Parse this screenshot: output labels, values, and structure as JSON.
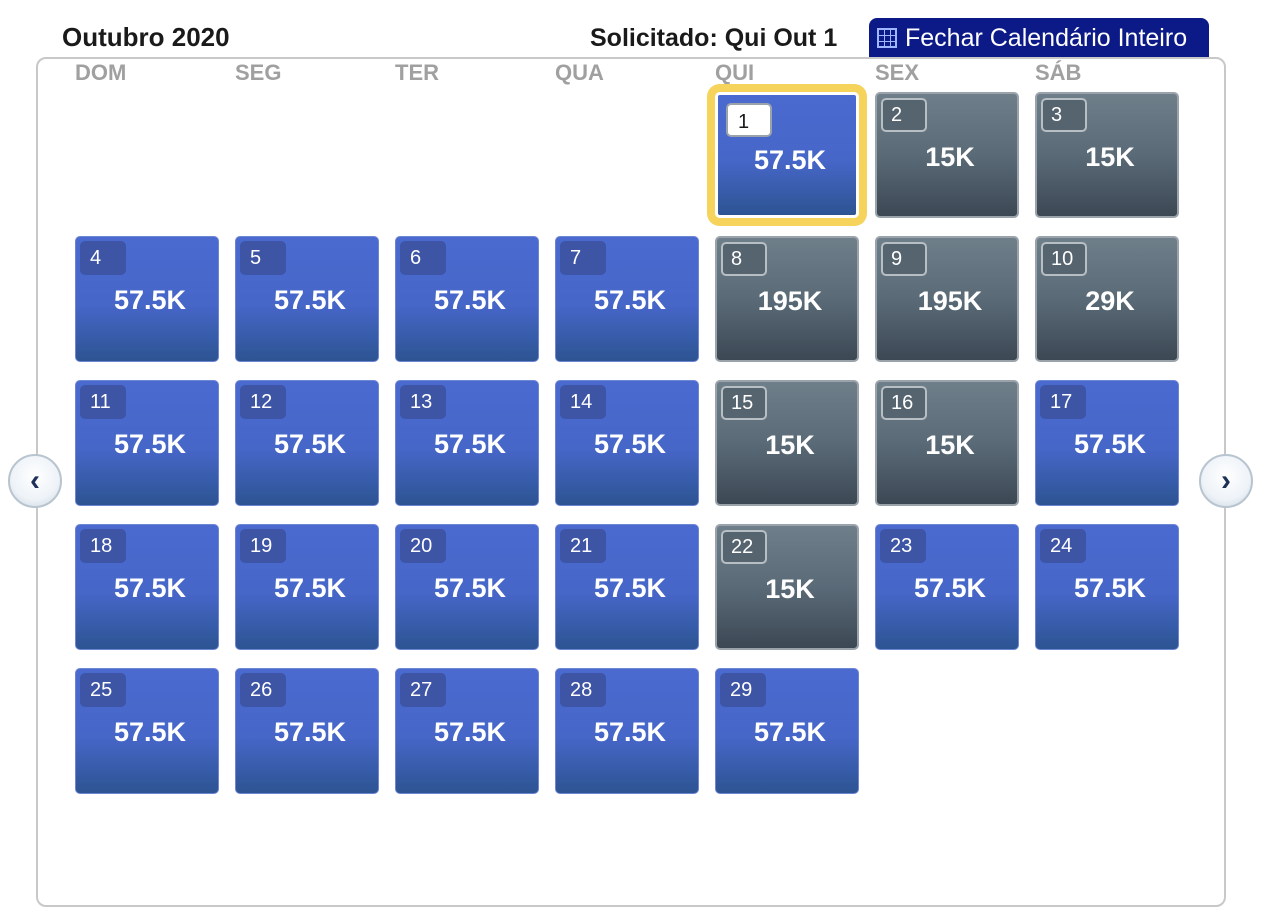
{
  "header": {
    "month_title": "Outubro 2020",
    "requested": "Solicitado: Qui Out 1",
    "close_button": "Fechar Calendário Inteiro"
  },
  "weekdays": [
    "DOM",
    "SEG",
    "TER",
    "QUA",
    "QUI",
    "SEX",
    "SÁB"
  ],
  "nav": {
    "prev_icon": "chevron-left-icon",
    "next_icon": "chevron-right-icon",
    "prev": "‹",
    "next": "›"
  },
  "days": [
    {
      "day": "1",
      "price": "57.5K",
      "style": "blue",
      "selected": true
    },
    {
      "day": "2",
      "price": "15K",
      "style": "gray"
    },
    {
      "day": "3",
      "price": "15K",
      "style": "gray"
    },
    {
      "day": "4",
      "price": "57.5K",
      "style": "blue"
    },
    {
      "day": "5",
      "price": "57.5K",
      "style": "blue"
    },
    {
      "day": "6",
      "price": "57.5K",
      "style": "blue"
    },
    {
      "day": "7",
      "price": "57.5K",
      "style": "blue"
    },
    {
      "day": "8",
      "price": "195K",
      "style": "gray"
    },
    {
      "day": "9",
      "price": "195K",
      "style": "gray"
    },
    {
      "day": "10",
      "price": "29K",
      "style": "gray"
    },
    {
      "day": "11",
      "price": "57.5K",
      "style": "blue"
    },
    {
      "day": "12",
      "price": "57.5K",
      "style": "blue"
    },
    {
      "day": "13",
      "price": "57.5K",
      "style": "blue"
    },
    {
      "day": "14",
      "price": "57.5K",
      "style": "blue"
    },
    {
      "day": "15",
      "price": "15K",
      "style": "gray"
    },
    {
      "day": "16",
      "price": "15K",
      "style": "gray"
    },
    {
      "day": "17",
      "price": "57.5K",
      "style": "blue"
    },
    {
      "day": "18",
      "price": "57.5K",
      "style": "blue"
    },
    {
      "day": "19",
      "price": "57.5K",
      "style": "blue"
    },
    {
      "day": "20",
      "price": "57.5K",
      "style": "blue"
    },
    {
      "day": "21",
      "price": "57.5K",
      "style": "blue"
    },
    {
      "day": "22",
      "price": "15K",
      "style": "gray"
    },
    {
      "day": "23",
      "price": "57.5K",
      "style": "blue"
    },
    {
      "day": "24",
      "price": "57.5K",
      "style": "blue"
    },
    {
      "day": "25",
      "price": "57.5K",
      "style": "blue"
    },
    {
      "day": "26",
      "price": "57.5K",
      "style": "blue"
    },
    {
      "day": "27",
      "price": "57.5K",
      "style": "blue"
    },
    {
      "day": "28",
      "price": "57.5K",
      "style": "blue"
    },
    {
      "day": "29",
      "price": "57.5K",
      "style": "blue"
    }
  ]
}
